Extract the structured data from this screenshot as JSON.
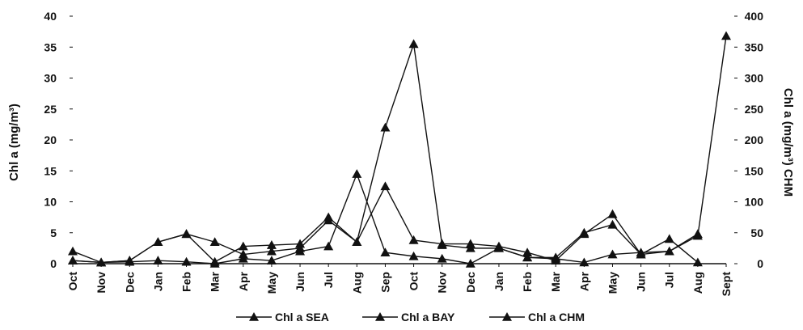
{
  "chart_data": {
    "type": "line",
    "categories": [
      "Oct",
      "Nov",
      "Dec",
      "Jan",
      "Feb",
      "Mar",
      "Apr",
      "May",
      "Jun",
      "Jul",
      "Aug",
      "Sep",
      "Oct",
      "Nov",
      "Dec",
      "Jan",
      "Feb",
      "Mar",
      "Apr",
      "May",
      "Jun",
      "Jul",
      "Aug",
      "Sept"
    ],
    "ylabel_left": "Chl a (mg/m³)",
    "ylabel_right": "Chl a (mg/m³) CHM",
    "ylim_left": [
      0,
      40
    ],
    "ylim_right": [
      0,
      400
    ],
    "yticks_left": [
      "0",
      "5",
      "10",
      "15",
      "20",
      "25",
      "30",
      "35",
      "40"
    ],
    "yticks_right": [
      "0",
      "50",
      "100",
      "150",
      "200",
      "250",
      "300",
      "350",
      "400"
    ],
    "grid": false,
    "legend_position": "bottom",
    "series": [
      {
        "name": "Chl a SEA",
        "axis": "left",
        "color": "#111111",
        "values": [
          0.5,
          0.2,
          0.3,
          0.5,
          0.3,
          0.0,
          0.8,
          0.5,
          2.0,
          2.8,
          14.5,
          1.8,
          1.2,
          0.8,
          0.0,
          2.5,
          1.0,
          0.8,
          0.2,
          1.5,
          1.8,
          2.0,
          4.8,
          null
        ]
      },
      {
        "name": "Chl a  BAY",
        "axis": "left",
        "color": "#111111",
        "values": [
          2.0,
          0.2,
          0.5,
          3.5,
          4.8,
          0.3,
          2.8,
          3.0,
          3.2,
          7.5,
          3.5,
          12.5,
          3.8,
          3.2,
          3.2,
          2.8,
          1.8,
          0.5,
          4.8,
          8.0,
          1.5,
          4.0,
          0.2,
          null
        ]
      },
      {
        "name": "Chl a CHM",
        "axis": "right",
        "color": "#111111",
        "values": [
          5,
          2,
          5,
          35,
          48,
          35,
          15,
          20,
          25,
          70,
          35,
          220,
          355,
          30,
          25,
          25,
          10,
          10,
          50,
          63,
          15,
          20,
          45,
          368
        ]
      }
    ]
  }
}
